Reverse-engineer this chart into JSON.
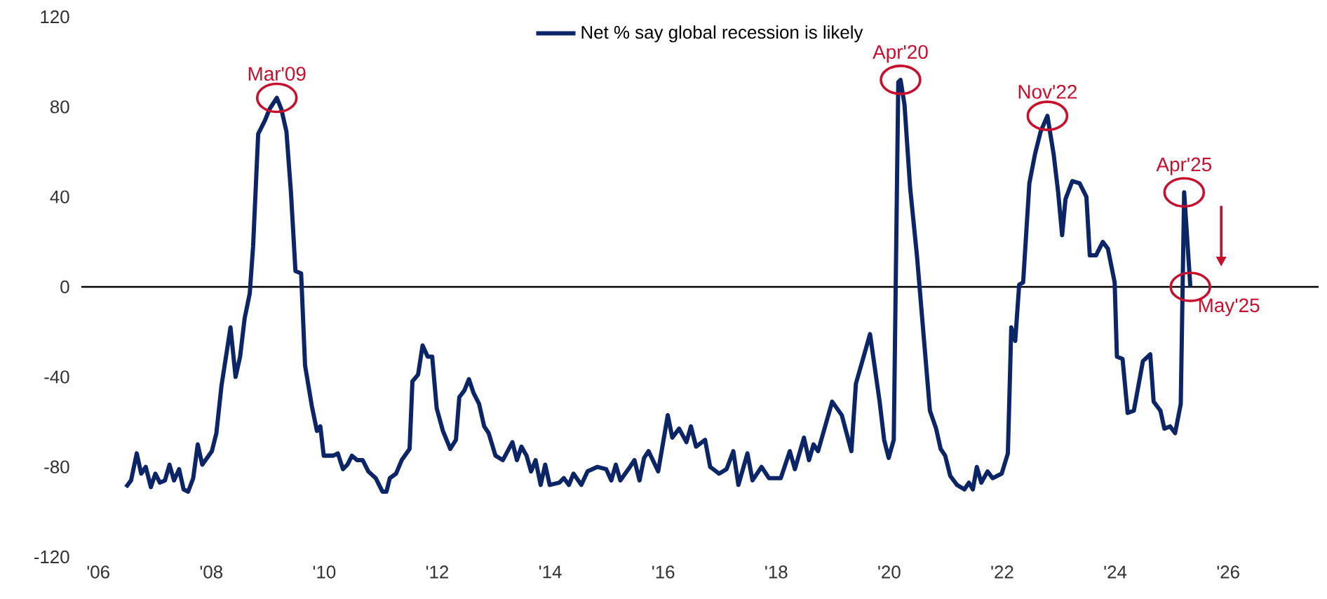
{
  "chart_data": {
    "type": "line",
    "series": [
      {
        "name": "Net % say global recession is likely",
        "color": "#0b2566",
        "x": [
          2006.49,
          2006.58,
          2006.68,
          2006.76,
          2006.84,
          2006.93,
          2007.01,
          2007.09,
          2007.18,
          2007.26,
          2007.34,
          2007.43,
          2007.51,
          2007.59,
          2007.68,
          2007.76,
          2007.84,
          2008.01,
          2008.09,
          2008.18,
          2008.34,
          2008.43,
          2008.51,
          2008.59,
          2008.68,
          2008.74,
          2008.83,
          2008.95,
          2009.03,
          2009.16,
          2009.24,
          2009.33,
          2009.41,
          2009.49,
          2009.59,
          2009.66,
          2009.78,
          2009.87,
          2009.93,
          2009.99,
          2010.16,
          2010.24,
          2010.33,
          2010.41,
          2010.49,
          2010.58,
          2010.68,
          2010.78,
          2010.91,
          2011.03,
          2011.1,
          2011.16,
          2011.27,
          2011.37,
          2011.51,
          2011.56,
          2011.66,
          2011.74,
          2011.83,
          2011.91,
          2011.99,
          2012.1,
          2012.23,
          2012.33,
          2012.39,
          2012.48,
          2012.56,
          2012.64,
          2012.74,
          2012.83,
          2012.91,
          2013.03,
          2013.16,
          2013.33,
          2013.41,
          2013.49,
          2013.58,
          2013.66,
          2013.74,
          2013.83,
          2013.91,
          2013.99,
          2014.16,
          2014.24,
          2014.33,
          2014.41,
          2014.55,
          2014.66,
          2014.83,
          2014.99,
          2015.08,
          2015.16,
          2015.24,
          2015.41,
          2015.49,
          2015.58,
          2015.66,
          2015.74,
          2015.91,
          2016.08,
          2016.16,
          2016.28,
          2016.41,
          2016.49,
          2016.58,
          2016.74,
          2016.83,
          2016.99,
          2017.12,
          2017.24,
          2017.33,
          2017.49,
          2017.58,
          2017.74,
          2017.87,
          2018.08,
          2018.24,
          2018.33,
          2018.49,
          2018.58,
          2018.66,
          2018.74,
          2018.99,
          2019.16,
          2019.33,
          2019.41,
          2019.66,
          2019.83,
          2019.91,
          2019.99,
          2020.08,
          2020.16,
          2020.2,
          2020.27,
          2020.37,
          2020.49,
          2020.62,
          2020.72,
          2020.83,
          2020.91,
          2020.99,
          2021.08,
          2021.2,
          2021.33,
          2021.41,
          2021.48,
          2021.55,
          2021.63,
          2021.74,
          2021.83,
          2021.99,
          2022.1,
          2022.16,
          2022.23,
          2022.3,
          2022.37,
          2022.48,
          2022.58,
          2022.68,
          2022.8,
          2022.91,
          2022.99,
          2023.06,
          2023.12,
          2023.24,
          2023.37,
          2023.49,
          2023.55,
          2023.66,
          2023.78,
          2023.87,
          2023.99,
          2024.03,
          2024.13,
          2024.22,
          2024.33,
          2024.49,
          2024.62,
          2024.68,
          2024.8,
          2024.87,
          2024.97,
          2025.06,
          2025.16,
          2025.22,
          2025.33
        ],
        "values": [
          -89,
          -86,
          -74,
          -83,
          -80,
          -89,
          -83,
          -87,
          -86,
          -79,
          -86,
          -81,
          -90,
          -91,
          -85,
          -70,
          -79,
          -73,
          -65,
          -44,
          -18,
          -40,
          -31,
          -14,
          -3,
          18,
          68,
          74,
          79,
          84,
          79,
          69,
          42,
          7,
          6,
          -35,
          -53,
          -64,
          -62,
          -75,
          -75,
          -74,
          -81,
          -79,
          -75,
          -77,
          -77,
          -82,
          -85,
          -91,
          -91,
          -85,
          -83,
          -77,
          -72,
          -42,
          -39,
          -26,
          -31,
          -31,
          -54,
          -64,
          -72,
          -68,
          -49,
          -46,
          -41,
          -47,
          -52,
          -62,
          -65,
          -75,
          -77,
          -69,
          -77,
          -71,
          -75,
          -82,
          -77,
          -88,
          -79,
          -88,
          -87,
          -85,
          -88,
          -83,
          -88,
          -82,
          -80,
          -81,
          -86,
          -79,
          -86,
          -80,
          -77,
          -86,
          -76,
          -73,
          -82,
          -57,
          -67,
          -63,
          -69,
          -62,
          -71,
          -68,
          -80,
          -83,
          -81,
          -73,
          -88,
          -74,
          -86,
          -80,
          -85,
          -85,
          -73,
          -81,
          -67,
          -77,
          -70,
          -73,
          -51,
          -57,
          -73,
          -43,
          -21,
          -51,
          -68,
          -76,
          -68,
          91,
          92,
          81,
          44,
          14,
          -25,
          -55,
          -63,
          -72,
          -75,
          -84,
          -88,
          -90,
          -87,
          -90,
          -80,
          -87,
          -82,
          -85,
          -83,
          -74,
          -18,
          -24,
          1,
          2,
          46,
          59,
          69,
          76,
          59,
          42,
          23,
          39,
          47,
          46,
          40,
          14,
          14,
          20,
          17,
          2,
          -31,
          -32,
          -56,
          -55,
          -33,
          -30,
          -51,
          -55,
          -63,
          -62,
          -65,
          -52,
          42,
          0
        ]
      }
    ],
    "xlim": [
      2005.7,
      2027.6
    ],
    "xticks": [
      {
        "value": 2006,
        "label": "'06"
      },
      {
        "value": 2008,
        "label": "'08"
      },
      {
        "value": 2010,
        "label": "'10"
      },
      {
        "value": 2012,
        "label": "'12"
      },
      {
        "value": 2014,
        "label": "'14"
      },
      {
        "value": 2016,
        "label": "'16"
      },
      {
        "value": 2018,
        "label": "'18"
      },
      {
        "value": 2020,
        "label": "'20"
      },
      {
        "value": 2022,
        "label": "'22"
      },
      {
        "value": 2024,
        "label": "'24"
      },
      {
        "value": 2026,
        "label": "'26"
      }
    ],
    "ylim": [
      -120,
      120
    ],
    "yticks": [
      -120,
      -80,
      -40,
      0,
      40,
      80,
      120
    ],
    "ref_lines": [
      {
        "axis": "y",
        "value": 0,
        "color": "#000000"
      }
    ],
    "annotations": [
      {
        "text": "Mar'09",
        "x": 2009.16,
        "y": 84
      },
      {
        "text": "Apr'20",
        "x": 2020.2,
        "y": 92
      },
      {
        "text": "Nov'22",
        "x": 2022.8,
        "y": 76
      },
      {
        "text": "Apr'25",
        "x": 2025.22,
        "y": 42
      },
      {
        "text": "May'25",
        "x": 2025.33,
        "y": 0
      }
    ],
    "legend": "top",
    "grid": false,
    "line_style": "solid",
    "marker": "none"
  }
}
